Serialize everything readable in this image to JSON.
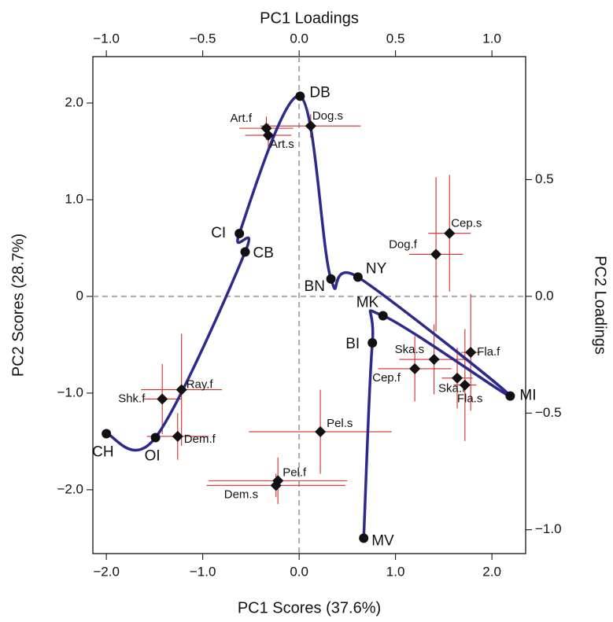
{
  "chart_data": {
    "type": "biplot",
    "x_label": "PC1 Scores (37.6%)",
    "y_label": "PC2 Scores (28.7%)",
    "x2_label": "PC1 Loadings",
    "y2_label": "PC2 Loadings",
    "xlim": [
      -2.14,
      2.35
    ],
    "ylim": [
      -2.66,
      2.48
    ],
    "x2lim": [
      -1.07,
      1.175
    ],
    "y2lim": [
      -1.102,
      1.027
    ],
    "xticks": [
      {
        "value": -2,
        "label": "−2.0"
      },
      {
        "value": -1,
        "label": "−1.0"
      },
      {
        "value": 0,
        "label": "0.0"
      },
      {
        "value": 1,
        "label": "1.0"
      },
      {
        "value": 2,
        "label": "2.0"
      }
    ],
    "yticks": [
      {
        "value": 2,
        "label": "2.0"
      },
      {
        "value": 1,
        "label": "1.0"
      },
      0,
      {
        "value": -1,
        "label": "−1.0"
      },
      {
        "value": -2,
        "label": "−2.0"
      }
    ],
    "x2ticks": [
      {
        "value": -1,
        "label": "−1.0"
      },
      {
        "value": -0.5,
        "label": "−0.5"
      },
      {
        "value": 0,
        "label": "0.0"
      },
      {
        "value": 0.5,
        "label": "0.5"
      },
      {
        "value": 1,
        "label": "1.0"
      }
    ],
    "y2ticks": [
      {
        "value": 0.5,
        "label": "0.5"
      },
      {
        "value": 0,
        "label": "0.0"
      },
      {
        "value": -0.5,
        "label": "−0.5"
      },
      {
        "value": -1,
        "label": "−1.0"
      }
    ],
    "sites": {
      "name": "Scores",
      "color": "#2e2a8c",
      "labels": [
        "CH",
        "OI",
        "CB",
        "CI",
        "DB",
        "BN",
        "NY",
        "MI",
        "MK",
        "BI",
        "MV"
      ],
      "x": [
        -2.0,
        -1.49,
        -0.56,
        -0.62,
        0.01,
        0.33,
        0.61,
        2.19,
        0.87,
        0.76,
        0.67
      ],
      "y": [
        -1.42,
        -1.46,
        0.46,
        0.65,
        2.07,
        0.18,
        0.2,
        -1.03,
        -0.2,
        -0.48,
        -2.5
      ]
    },
    "loadings": {
      "name": "Loadings",
      "color": "#d42a2a",
      "labels": [
        "Art.f",
        "Art.s",
        "Dog.s",
        "Cep.s",
        "Dog.f",
        "Fla.f",
        "Ska.s",
        "Cep.f",
        "Ska.f",
        "Fla.s",
        "Ray.f",
        "Shk.f",
        "Dem.f",
        "Pel.s",
        "Pel.f",
        "Dem.s"
      ],
      "x": [
        -0.17,
        -0.16,
        0.06,
        0.78,
        0.71,
        0.89,
        0.7,
        0.6,
        0.82,
        0.86,
        -0.61,
        -0.71,
        -0.63,
        0.11,
        -0.11,
        -0.12
      ],
      "y": [
        0.72,
        0.69,
        0.73,
        0.27,
        0.18,
        -0.24,
        -0.27,
        -0.31,
        -0.35,
        -0.38,
        -0.4,
        -0.44,
        -0.6,
        -0.58,
        -0.79,
        -0.81
      ],
      "xerr": [
        0.14,
        0.12,
        0.26,
        0.11,
        0.14,
        0.05,
        0.18,
        0.19,
        0.08,
        0.06,
        0.21,
        0.1,
        0.16,
        0.37,
        0.36,
        0.36
      ],
      "yerr": [
        0.05,
        0.05,
        0.05,
        0.25,
        0.33,
        0.25,
        0.15,
        0.14,
        0.13,
        0.24,
        0.24,
        0.15,
        0.1,
        0.18,
        0.1,
        0.05
      ]
    }
  }
}
